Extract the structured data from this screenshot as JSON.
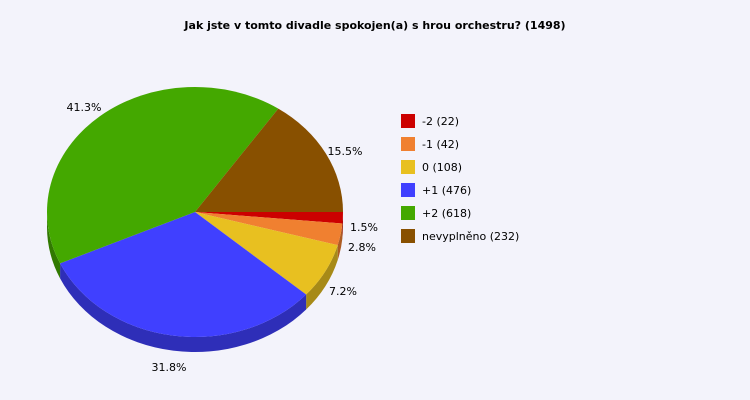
{
  "chart_data": {
    "type": "pie",
    "title": "Jak jste v tomto divadle spokojen(a) s hrou orchestru? (1498)",
    "categories": [
      "-2 (22)",
      "-1 (42)",
      "0 (108)",
      "+1 (476)",
      "+2 (618)",
      "nevyplněno (232)"
    ],
    "values": [
      22,
      42,
      108,
      476,
      618,
      232
    ],
    "percent_labels": [
      "1.5%",
      "2.8%",
      "7.2%",
      "31.8%",
      "41.3%",
      "15.5%"
    ],
    "colors": [
      "#cc0000",
      "#f08030",
      "#e8c020",
      "#4040ff",
      "#44a800",
      "#885000"
    ],
    "legend_placement": "right"
  }
}
